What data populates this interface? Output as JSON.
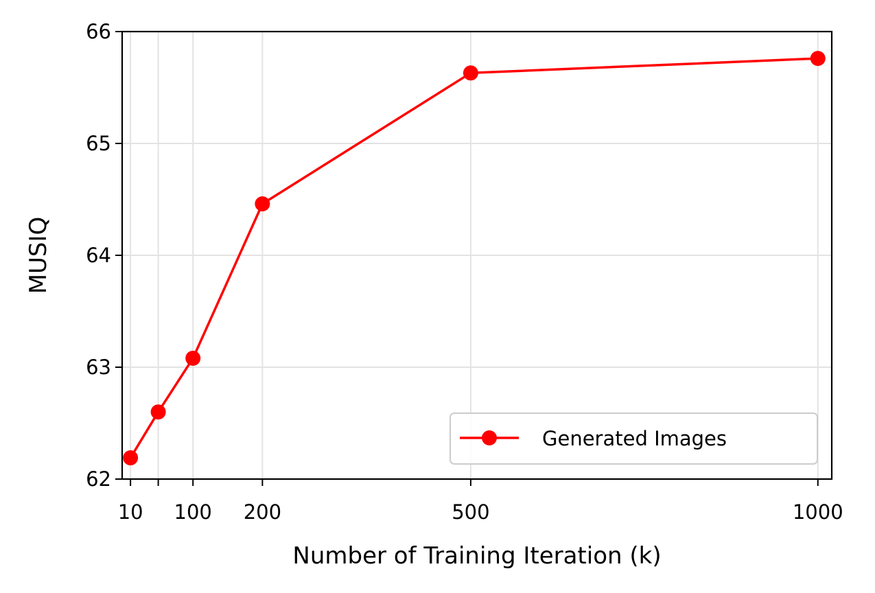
{
  "chart_data": {
    "type": "line",
    "title": "",
    "xlabel": "Number of Training Iteration (k)",
    "ylabel": "MUSIQ",
    "xlim": [
      -2,
      1020
    ],
    "ylim": [
      62,
      66
    ],
    "x_ticks": [
      10,
      50,
      100,
      200,
      500,
      1000
    ],
    "x_tick_labels": [
      "10",
      "",
      "100",
      "200",
      "500",
      "1000"
    ],
    "y_ticks": [
      62,
      63,
      64,
      65,
      66
    ],
    "y_tick_labels": [
      "62",
      "63",
      "64",
      "65",
      "66"
    ],
    "grid": true,
    "legend_position": "lower-right",
    "series": [
      {
        "name": "Generated Images",
        "color": "#ff0000",
        "marker": "circle",
        "x": [
          10,
          50,
          100,
          200,
          500,
          1000
        ],
        "y": [
          62.19,
          62.6,
          63.08,
          64.46,
          65.63,
          65.76
        ]
      }
    ]
  }
}
